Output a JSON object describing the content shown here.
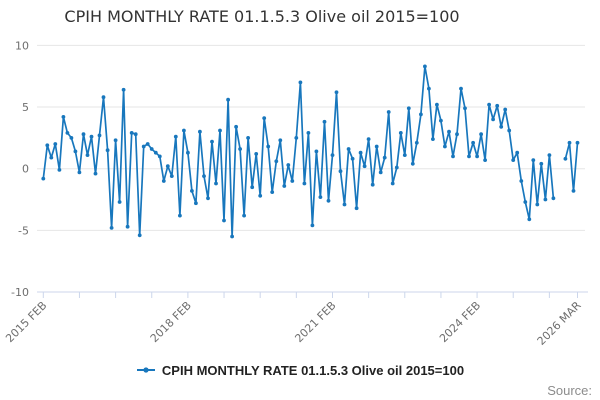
{
  "title": "CPIH MONTHLY RATE 01.1.5.3 Olive oil 2015=100",
  "source_label": "Source:",
  "legend": {
    "label": "CPIH MONTHLY RATE 01.1.5.3 Olive oil 2015=100",
    "marker": "line-with-dot"
  },
  "colors": {
    "series": "#1877bd",
    "gridline": "#e6e6e6",
    "axis": "#ccd6eb",
    "tick_label": "#6e6e6e",
    "title": "#333333",
    "source": "#8c8c8c"
  },
  "y_axis": {
    "ticks": [
      10,
      5,
      0,
      -5,
      -10
    ],
    "min": -10,
    "max": 10
  },
  "x_axis": {
    "labels": [
      "2015 FEB",
      "2018 FEB",
      "2021 FEB",
      "2024 FEB",
      "2026 MAR"
    ],
    "label_month_indices": [
      0,
      36,
      72,
      108,
      133
    ],
    "tick_month_step": 9,
    "label_angle": -45
  },
  "chart_data": {
    "type": "line",
    "title": "CPIH MONTHLY RATE 01.1.5.3 Olive oil 2015=100",
    "xlabel": "",
    "ylabel": "",
    "ylim": [
      -10,
      10
    ],
    "grid": true,
    "legend_position": "bottom",
    "markers": true,
    "gap_note": "two months missing (null) near end of 2025",
    "x": [
      "2015 FEB",
      "2015 MAR",
      "2015 APR",
      "2015 MAY",
      "2015 JUN",
      "2015 JUL",
      "2015 AUG",
      "2015 SEP",
      "2015 OCT",
      "2015 NOV",
      "2015 DEC",
      "2016 JAN",
      "2016 FEB",
      "2016 MAR",
      "2016 APR",
      "2016 MAY",
      "2016 JUN",
      "2016 JUL",
      "2016 AUG",
      "2016 SEP",
      "2016 OCT",
      "2016 NOV",
      "2016 DEC",
      "2017 JAN",
      "2017 FEB",
      "2017 MAR",
      "2017 APR",
      "2017 MAY",
      "2017 JUN",
      "2017 JUL",
      "2017 AUG",
      "2017 SEP",
      "2017 OCT",
      "2017 NOV",
      "2017 DEC",
      "2018 JAN",
      "2018 FEB",
      "2018 MAR",
      "2018 APR",
      "2018 MAY",
      "2018 JUN",
      "2018 JUL",
      "2018 AUG",
      "2018 SEP",
      "2018 OCT",
      "2018 NOV",
      "2018 DEC",
      "2019 JAN",
      "2019 FEB",
      "2019 MAR",
      "2019 APR",
      "2019 MAY",
      "2019 JUN",
      "2019 JUL",
      "2019 AUG",
      "2019 SEP",
      "2019 OCT",
      "2019 NOV",
      "2019 DEC",
      "2020 JAN",
      "2020 FEB",
      "2020 MAR",
      "2020 APR",
      "2020 MAY",
      "2020 JUN",
      "2020 JUL",
      "2020 AUG",
      "2020 SEP",
      "2020 OCT",
      "2020 NOV",
      "2020 DEC",
      "2021 JAN",
      "2021 FEB",
      "2021 MAR",
      "2021 APR",
      "2021 MAY",
      "2021 JUN",
      "2021 JUL",
      "2021 AUG",
      "2021 SEP",
      "2021 OCT",
      "2021 NOV",
      "2021 DEC",
      "2022 JAN",
      "2022 FEB",
      "2022 MAR",
      "2022 APR",
      "2022 MAY",
      "2022 JUN",
      "2022 JUL",
      "2022 AUG",
      "2022 SEP",
      "2022 OCT",
      "2022 NOV",
      "2022 DEC",
      "2023 JAN",
      "2023 FEB",
      "2023 MAR",
      "2023 APR",
      "2023 MAY",
      "2023 JUN",
      "2023 JUL",
      "2023 AUG",
      "2023 SEP",
      "2023 OCT",
      "2023 NOV",
      "2023 DEC",
      "2024 JAN",
      "2024 FEB",
      "2024 MAR",
      "2024 APR",
      "2024 MAY",
      "2024 JUN",
      "2024 JUL",
      "2024 AUG",
      "2024 SEP",
      "2024 OCT",
      "2024 NOV",
      "2024 DEC",
      "2025 JAN",
      "2025 FEB",
      "2025 MAR",
      "2025 APR",
      "2025 MAY",
      "2025 JUN",
      "2025 JUL",
      "2025 AUG",
      "2025 SEP",
      "2025 OCT",
      "2025 NOV",
      "2025 DEC",
      "2026 JAN",
      "2026 FEB",
      "2026 MAR"
    ],
    "values": [
      -0.8,
      1.9,
      0.9,
      2.0,
      -0.1,
      4.2,
      2.9,
      2.5,
      1.4,
      -0.3,
      2.8,
      1.1,
      2.6,
      -0.4,
      2.7,
      5.8,
      1.5,
      -4.8,
      2.3,
      -2.7,
      6.4,
      -4.7,
      2.9,
      2.8,
      -5.4,
      1.8,
      2.0,
      1.6,
      1.3,
      1.0,
      -1.0,
      0.2,
      -0.6,
      2.6,
      -3.8,
      3.1,
      1.3,
      -1.8,
      -2.8,
      3.0,
      -0.6,
      -2.4,
      2.2,
      -1.2,
      3.1,
      -4.2,
      5.6,
      -5.5,
      3.4,
      1.6,
      -3.8,
      2.5,
      -1.5,
      1.2,
      -2.2,
      4.1,
      1.8,
      -1.9,
      0.6,
      2.3,
      -1.4,
      0.3,
      -1.0,
      2.5,
      7.0,
      -1.2,
      2.9,
      -4.6,
      1.4,
      -2.3,
      3.8,
      -2.6,
      1.1,
      6.2,
      -0.2,
      -2.9,
      1.6,
      0.8,
      -3.2,
      1.3,
      0.2,
      2.4,
      -1.3,
      1.8,
      -0.3,
      0.9,
      4.6,
      -1.2,
      0.1,
      2.9,
      1.1,
      4.9,
      0.4,
      2.1,
      4.4,
      8.3,
      6.5,
      2.4,
      5.2,
      3.9,
      1.8,
      3.0,
      1.0,
      2.8,
      6.5,
      4.9,
      1.0,
      2.1,
      1.0,
      2.8,
      0.7,
      5.2,
      4.0,
      5.1,
      3.4,
      4.8,
      3.1,
      0.7,
      1.3,
      -1.0,
      -2.7,
      -4.1,
      0.7,
      -2.9,
      0.4,
      -2.5,
      1.1,
      -2.4,
      null,
      null,
      0.8,
      2.1,
      -1.8,
      2.1
    ]
  }
}
